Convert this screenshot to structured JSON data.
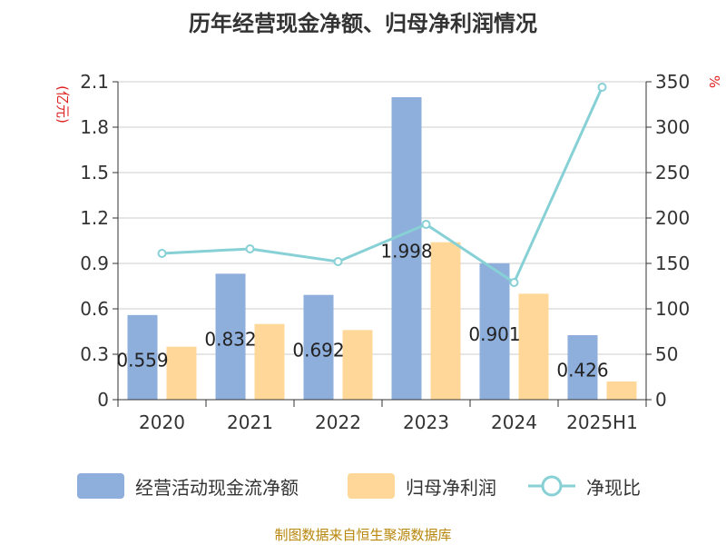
{
  "chart_data": {
    "type": "bar",
    "title": "历年经营现金净额、归母净利润情况",
    "categories": [
      "2020",
      "2021",
      "2022",
      "2023",
      "2024",
      "2025H1"
    ],
    "series": [
      {
        "name": "经营活动现金流净额",
        "kind": "bar",
        "axis": "left",
        "color": "#8eaedb",
        "values": [
          0.559,
          0.832,
          0.692,
          1.998,
          0.901,
          0.426
        ]
      },
      {
        "name": "归母净利润",
        "kind": "bar",
        "axis": "left",
        "color": "#ffd899",
        "values": [
          0.35,
          0.5,
          0.46,
          1.04,
          0.7,
          0.12
        ]
      },
      {
        "name": "净现比",
        "kind": "line",
        "axis": "right",
        "color": "#87d1d6",
        "values": [
          161,
          166,
          152,
          193,
          129,
          344
        ]
      }
    ],
    "data_labels": [
      "0.559",
      "0.832",
      "0.692",
      "1.998",
      "0.901",
      "0.426"
    ],
    "left_axis": {
      "label": "(亿元)",
      "min": 0,
      "max": 2.1,
      "ticks": [
        "0",
        "0.3",
        "0.6",
        "0.9",
        "1.2",
        "1.5",
        "1.8",
        "2.1"
      ]
    },
    "right_axis": {
      "label": "%",
      "min": 0,
      "max": 350,
      "ticks": [
        "0",
        "50",
        "100",
        "150",
        "200",
        "250",
        "300",
        "350"
      ]
    },
    "grid": true,
    "legend_position": "bottom",
    "axis_label_color": "#e02020"
  },
  "footer": {
    "source": "制图数据来自恒生聚源数据库",
    "color": "#b8860b"
  }
}
